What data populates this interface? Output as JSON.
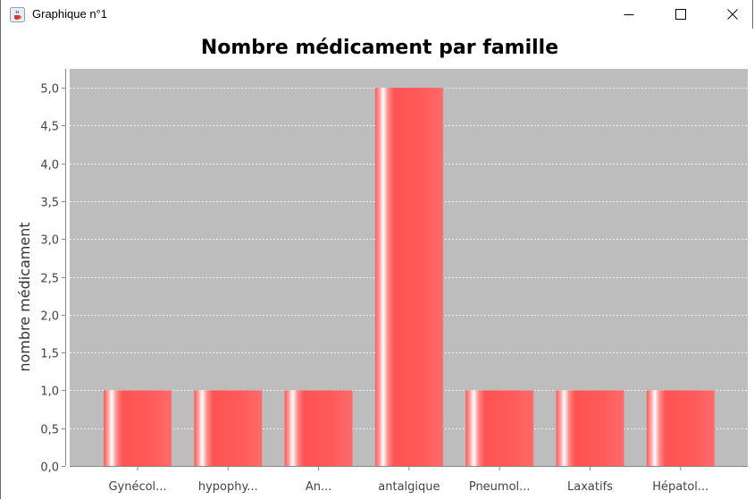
{
  "window": {
    "title": "Graphique n°1",
    "icon": "java-coffee-cup-icon",
    "controls": [
      "minimize-icon",
      "maximize-icon",
      "close-icon"
    ]
  },
  "colors": {
    "plot_background": "#bdbdbd",
    "bar": "#ff5555",
    "bar_highlight": "#ffffff",
    "gridline": "#ffffff"
  },
  "chart_data": {
    "type": "bar",
    "title": "Nombre médicament par famille",
    "xlabel": "",
    "ylabel": "nombre médicament",
    "categories": [
      "Gynécol...",
      "hypophy...",
      "An...",
      "antalgique",
      "Pneumol...",
      "Laxatifs",
      "Hépatol..."
    ],
    "values": [
      1,
      1,
      1,
      5,
      1,
      1,
      1
    ],
    "ylim": [
      0,
      5.25
    ],
    "yticks": [
      "0,0",
      "0,5",
      "1,0",
      "1,5",
      "2,0",
      "2,5",
      "3,0",
      "3,5",
      "4,0",
      "4,5",
      "5,0"
    ],
    "grid": true,
    "legend": "none"
  }
}
